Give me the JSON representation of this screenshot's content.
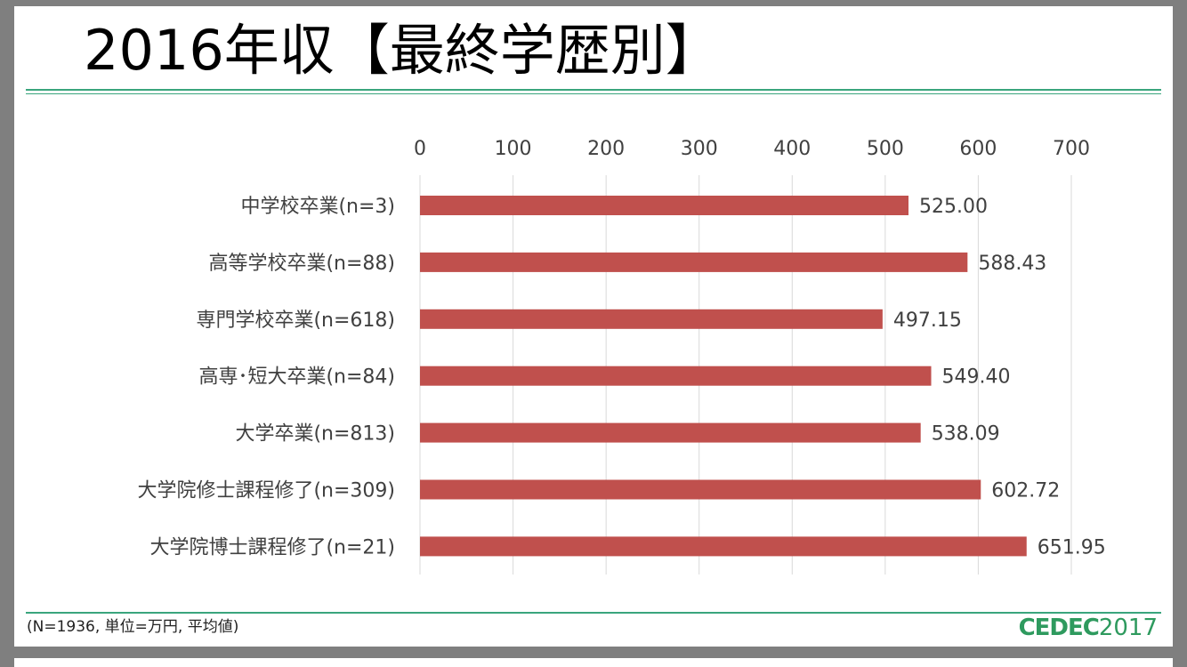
{
  "title": "2016年収【最終学歴別】",
  "footnote": "(N=1936, 単位=万円, 平均値)",
  "logo": {
    "bold": "CEDEC",
    "light": "2017",
    "color": "#2e9a5e"
  },
  "colors": {
    "bar": "#c0504d",
    "rule": "#3aa57d",
    "grid": "#d9d9d9"
  },
  "chart_data": {
    "type": "bar",
    "orientation": "horizontal",
    "title": "2016年収【最終学歴別】",
    "xaxis_position": "top",
    "xlim": [
      0,
      700
    ],
    "xticks": [
      "0",
      "100",
      "200",
      "300",
      "400",
      "500",
      "600",
      "700"
    ],
    "grid": true,
    "categories": [
      "中学校卒業(n=3)",
      "高等学校卒業(n=88)",
      "専門学校卒業(n=618)",
      "高専･短大卒業(n=84)",
      "大学卒業(n=813)",
      "大学院修士課程修了(n=309)",
      "大学院博士課程修了(n=21)"
    ],
    "values": [
      525.0,
      588.43,
      497.15,
      549.4,
      538.09,
      602.72,
      651.95
    ],
    "data_labels": [
      "525.00",
      "588.43",
      "497.15",
      "549.40",
      "538.09",
      "602.72",
      "651.95"
    ]
  }
}
